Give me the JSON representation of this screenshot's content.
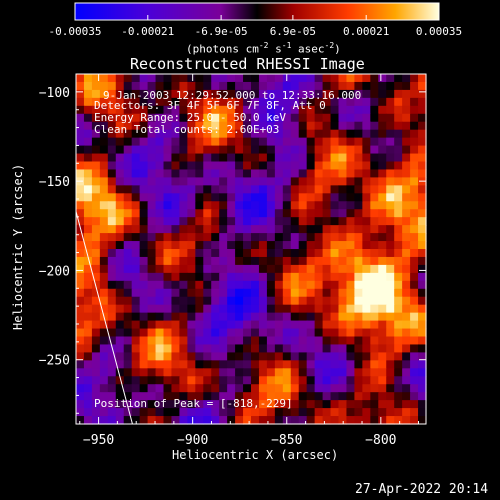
{
  "chart_data": {
    "type": "heatmap",
    "title": "Reconstructed RHESSI Image",
    "xlabel": "Heliocentric X (arcsec)",
    "ylabel": "Heliocentric Y (arcsec)",
    "xlim": [
      -962,
      -776
    ],
    "ylim": [
      -286,
      -90
    ],
    "x_ticks": [
      -950,
      -900,
      -850,
      -800
    ],
    "y_ticks": [
      -100,
      -150,
      -200,
      -250
    ],
    "colorbar": {
      "range": [
        -0.00035,
        0.00035
      ],
      "ticks": [
        -0.00035,
        -0.00021,
        -6.9e-05,
        6.9e-05,
        0.00021,
        0.00035
      ],
      "tick_labels": [
        "-0.00035",
        "-0.00021",
        "-6.9e-05",
        "6.9e-05",
        "0.00021",
        "0.00035"
      ],
      "label_main": "(photons cm",
      "label_exp1": "-2",
      "label_mid1": " s",
      "label_exp2": "-1",
      "label_mid2": " asec",
      "label_exp3": "-2",
      "label_end": ")"
    },
    "annotations": [
      "9-Jan-2003 12:29:52.000 to 12:33:16.000",
      "Detectors: 3F 4F 5F 6F 7F 8F, Att 0",
      "Energy Range: 25.0 - 50.0 keV",
      "Clean     Total counts: 2.60E+03"
    ],
    "peak_label": "Position of Peak = [-818,-229]",
    "limb_line": [
      [
        -962,
        -167
      ],
      [
        -932,
        -286
      ]
    ],
    "grid": false,
    "legend": "none"
  },
  "footer_timestamp": "27-Apr-2022 20:14"
}
